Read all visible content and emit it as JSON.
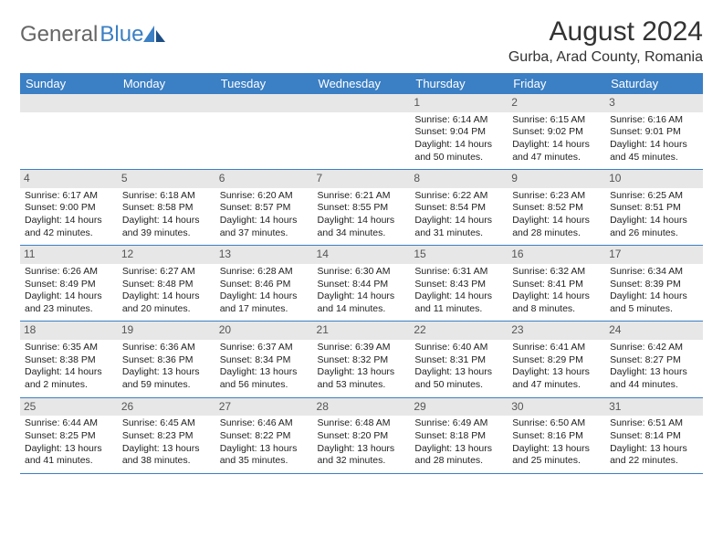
{
  "brand": {
    "grey": "General",
    "blue": "Blue"
  },
  "title": "August 2024",
  "location": "Gurba, Arad County, Romania",
  "colors": {
    "headerBar": "#3b7fc4",
    "dayStrip": "#e7e7e7",
    "textDark": "#333333"
  },
  "daysOfWeek": [
    "Sunday",
    "Monday",
    "Tuesday",
    "Wednesday",
    "Thursday",
    "Friday",
    "Saturday"
  ],
  "weeks": [
    [
      null,
      null,
      null,
      null,
      {
        "n": "1",
        "sunrise": "6:14 AM",
        "sunset": "9:04 PM",
        "day_h": "14",
        "day_m": "50"
      },
      {
        "n": "2",
        "sunrise": "6:15 AM",
        "sunset": "9:02 PM",
        "day_h": "14",
        "day_m": "47"
      },
      {
        "n": "3",
        "sunrise": "6:16 AM",
        "sunset": "9:01 PM",
        "day_h": "14",
        "day_m": "45"
      }
    ],
    [
      {
        "n": "4",
        "sunrise": "6:17 AM",
        "sunset": "9:00 PM",
        "day_h": "14",
        "day_m": "42"
      },
      {
        "n": "5",
        "sunrise": "6:18 AM",
        "sunset": "8:58 PM",
        "day_h": "14",
        "day_m": "39"
      },
      {
        "n": "6",
        "sunrise": "6:20 AM",
        "sunset": "8:57 PM",
        "day_h": "14",
        "day_m": "37"
      },
      {
        "n": "7",
        "sunrise": "6:21 AM",
        "sunset": "8:55 PM",
        "day_h": "14",
        "day_m": "34"
      },
      {
        "n": "8",
        "sunrise": "6:22 AM",
        "sunset": "8:54 PM",
        "day_h": "14",
        "day_m": "31"
      },
      {
        "n": "9",
        "sunrise": "6:23 AM",
        "sunset": "8:52 PM",
        "day_h": "14",
        "day_m": "28"
      },
      {
        "n": "10",
        "sunrise": "6:25 AM",
        "sunset": "8:51 PM",
        "day_h": "14",
        "day_m": "26"
      }
    ],
    [
      {
        "n": "11",
        "sunrise": "6:26 AM",
        "sunset": "8:49 PM",
        "day_h": "14",
        "day_m": "23"
      },
      {
        "n": "12",
        "sunrise": "6:27 AM",
        "sunset": "8:48 PM",
        "day_h": "14",
        "day_m": "20"
      },
      {
        "n": "13",
        "sunrise": "6:28 AM",
        "sunset": "8:46 PM",
        "day_h": "14",
        "day_m": "17"
      },
      {
        "n": "14",
        "sunrise": "6:30 AM",
        "sunset": "8:44 PM",
        "day_h": "14",
        "day_m": "14"
      },
      {
        "n": "15",
        "sunrise": "6:31 AM",
        "sunset": "8:43 PM",
        "day_h": "14",
        "day_m": "11"
      },
      {
        "n": "16",
        "sunrise": "6:32 AM",
        "sunset": "8:41 PM",
        "day_h": "14",
        "day_m": "8"
      },
      {
        "n": "17",
        "sunrise": "6:34 AM",
        "sunset": "8:39 PM",
        "day_h": "14",
        "day_m": "5"
      }
    ],
    [
      {
        "n": "18",
        "sunrise": "6:35 AM",
        "sunset": "8:38 PM",
        "day_h": "14",
        "day_m": "2"
      },
      {
        "n": "19",
        "sunrise": "6:36 AM",
        "sunset": "8:36 PM",
        "day_h": "13",
        "day_m": "59"
      },
      {
        "n": "20",
        "sunrise": "6:37 AM",
        "sunset": "8:34 PM",
        "day_h": "13",
        "day_m": "56"
      },
      {
        "n": "21",
        "sunrise": "6:39 AM",
        "sunset": "8:32 PM",
        "day_h": "13",
        "day_m": "53"
      },
      {
        "n": "22",
        "sunrise": "6:40 AM",
        "sunset": "8:31 PM",
        "day_h": "13",
        "day_m": "50"
      },
      {
        "n": "23",
        "sunrise": "6:41 AM",
        "sunset": "8:29 PM",
        "day_h": "13",
        "day_m": "47"
      },
      {
        "n": "24",
        "sunrise": "6:42 AM",
        "sunset": "8:27 PM",
        "day_h": "13",
        "day_m": "44"
      }
    ],
    [
      {
        "n": "25",
        "sunrise": "6:44 AM",
        "sunset": "8:25 PM",
        "day_h": "13",
        "day_m": "41"
      },
      {
        "n": "26",
        "sunrise": "6:45 AM",
        "sunset": "8:23 PM",
        "day_h": "13",
        "day_m": "38"
      },
      {
        "n": "27",
        "sunrise": "6:46 AM",
        "sunset": "8:22 PM",
        "day_h": "13",
        "day_m": "35"
      },
      {
        "n": "28",
        "sunrise": "6:48 AM",
        "sunset": "8:20 PM",
        "day_h": "13",
        "day_m": "32"
      },
      {
        "n": "29",
        "sunrise": "6:49 AM",
        "sunset": "8:18 PM",
        "day_h": "13",
        "day_m": "28"
      },
      {
        "n": "30",
        "sunrise": "6:50 AM",
        "sunset": "8:16 PM",
        "day_h": "13",
        "day_m": "25"
      },
      {
        "n": "31",
        "sunrise": "6:51 AM",
        "sunset": "8:14 PM",
        "day_h": "13",
        "day_m": "22"
      }
    ]
  ],
  "labels": {
    "sunrise": "Sunrise:",
    "sunset": "Sunset:",
    "daylight": "Daylight:",
    "hours": "hours",
    "and": "and",
    "minutes": "minutes."
  }
}
